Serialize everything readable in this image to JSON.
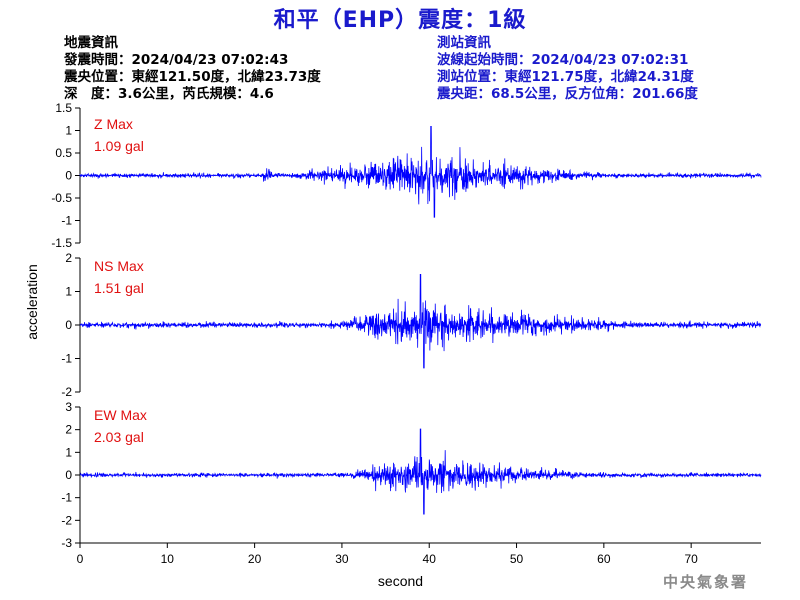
{
  "title": "和平（EHP）震度：1級",
  "earthquake_info": {
    "heading": "地震資訊",
    "origin_time": "發震時間：2024/04/23 07:02:43",
    "epicenter": "震央位置：東經121.50度，北緯23.73度",
    "depth_magnitude": "深　度：3.6公里，芮氏規模：4.6"
  },
  "station_info": {
    "heading": "測站資訊",
    "start_time": "波線起始時間：2024/04/23 07:02:31",
    "location": "測站位置：東經121.75度，北緯24.31度",
    "distance": "震央距：68.5公里，反方位角：201.66度"
  },
  "credit": "中央氣象署",
  "colors": {
    "title": "#1a1acc",
    "trace": "#0000ff",
    "max_label": "#e01010",
    "station_info": "#1a1acc"
  },
  "chart_data": {
    "type": "line",
    "xlabel": "second",
    "ylabel": "acceleration",
    "xlim": [
      0,
      78
    ],
    "xticks": [
      "0",
      "10",
      "20",
      "30",
      "40",
      "50",
      "60",
      "70"
    ],
    "panels": [
      {
        "id": "z",
        "max_title": "Z Max",
        "max_value": "1.09 gal",
        "ylim": [
          -1.5,
          1.5
        ],
        "yticks": [
          "1.5",
          "1",
          "0.5",
          "0",
          "-0.5",
          "-1",
          "-1.5"
        ],
        "peak": 1.09,
        "peak_time": 40.2,
        "noise": 0.07,
        "onset": 25.5,
        "decay_end": 62
      },
      {
        "id": "ns",
        "max_title": "NS Max",
        "max_value": "1.51 gal",
        "ylim": [
          -2,
          2
        ],
        "yticks": [
          "2",
          "1",
          "0",
          "-1",
          "-2"
        ],
        "peak": 1.51,
        "peak_time": 39,
        "noise": 0.12,
        "onset": 30,
        "decay_end": 66
      },
      {
        "id": "ew",
        "max_title": "EW Max",
        "max_value": "2.03 gal",
        "ylim": [
          -3,
          3
        ],
        "yticks": [
          "3",
          "2",
          "1",
          "0",
          "-1",
          "-2",
          "-3"
        ],
        "peak": 2.03,
        "peak_time": 39,
        "noise": 0.12,
        "onset": 31,
        "decay_end": 60
      }
    ]
  }
}
